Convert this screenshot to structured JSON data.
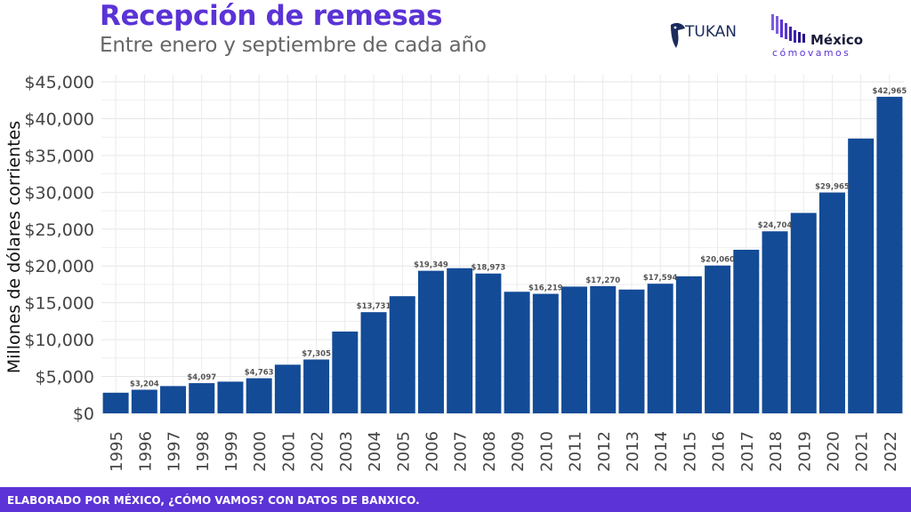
{
  "header": {
    "title": "Recepción de remesas",
    "subtitle": "Entre enero y septiembre de cada año"
  },
  "logos": {
    "tukan": "TUKAN",
    "mcv_main": "México",
    "mcv_sub": "cómovamos"
  },
  "footer": {
    "text": "ELABORADO POR MÉXICO, ¿CÓMO VAMOS? CON DATOS DE BANXICO."
  },
  "colors": {
    "bar": "#134b97",
    "accent": "#5b33d6",
    "grid": "#e6e6e6",
    "tick_text": "#444444",
    "label_text": "#555555"
  },
  "chart_data": {
    "type": "bar",
    "title": "Recepción de remesas",
    "subtitle": "Entre enero y septiembre de cada año",
    "xlabel": "",
    "ylabel": "Millones de dólares corrientes",
    "ylim": [
      0,
      45000
    ],
    "yticks": [
      0,
      5000,
      10000,
      15000,
      20000,
      25000,
      30000,
      35000,
      40000,
      45000
    ],
    "ytick_labels": [
      "$0",
      "$5,000",
      "$10,000",
      "$15,000",
      "$20,000",
      "$25,000",
      "$30,000",
      "$35,000",
      "$40,000",
      "$45,000"
    ],
    "grid": true,
    "categories": [
      "1995",
      "1996",
      "1997",
      "1998",
      "1999",
      "2000",
      "2001",
      "2002",
      "2003",
      "2004",
      "2005",
      "2006",
      "2007",
      "2008",
      "2009",
      "2010",
      "2011",
      "2012",
      "2013",
      "2014",
      "2015",
      "2016",
      "2017",
      "2018",
      "2019",
      "2020",
      "2021",
      "2022"
    ],
    "values": [
      2800,
      3204,
      3700,
      4097,
      4300,
      4763,
      6600,
      7305,
      11100,
      13731,
      15900,
      19349,
      19700,
      18973,
      16500,
      16219,
      17200,
      17270,
      16800,
      17594,
      18600,
      20060,
      22200,
      24704,
      27200,
      29965,
      37300,
      42965
    ],
    "data_labels": [
      "",
      "$3,204",
      "",
      "$4,097",
      "",
      "$4,763",
      "",
      "$7,305",
      "",
      "$13,731",
      "",
      "$19,349",
      "",
      "$18,973",
      "",
      "$16,219",
      "",
      "$17,270",
      "",
      "$17,594",
      "",
      "$20,060",
      "",
      "$24,704",
      "",
      "$29,965",
      "",
      "$42,965"
    ]
  }
}
